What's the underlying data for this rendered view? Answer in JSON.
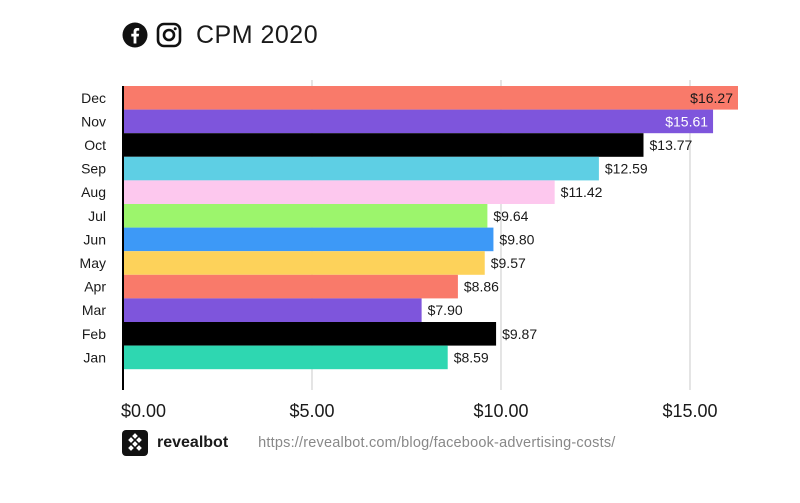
{
  "header": {
    "title": "CPM 2020",
    "icons": [
      "facebook-icon",
      "instagram-icon"
    ]
  },
  "footer": {
    "brand": "revealbot",
    "brand_icon": "revealbot-logo-icon",
    "url": "https://revealbot.com/blog/facebook-advertising-costs/"
  },
  "chart_data": {
    "type": "bar",
    "orientation": "horizontal",
    "title": "CPM 2020",
    "categories": [
      "Dec",
      "Nov",
      "Oct",
      "Sep",
      "Aug",
      "Jul",
      "Jun",
      "May",
      "Apr",
      "Mar",
      "Feb",
      "Jan"
    ],
    "values": [
      16.27,
      15.61,
      13.77,
      12.59,
      11.42,
      9.64,
      9.8,
      9.57,
      8.86,
      7.9,
      9.87,
      8.59
    ],
    "value_labels": [
      "$16.27",
      "$15.61",
      "$13.77",
      "$12.59",
      "$11.42",
      "$9.64",
      "$9.80",
      "$9.57",
      "$8.86",
      "$7.90",
      "$9.87",
      "$8.59"
    ],
    "colors": [
      "#f97a6a",
      "#7e55dc",
      "#000000",
      "#5ecfe4",
      "#fdc8ee",
      "#9cf56c",
      "#3d99f7",
      "#fdd25a",
      "#f97a6a",
      "#7e55dc",
      "#000000",
      "#2ed7b1"
    ],
    "label_colors": [
      "#1a1a1a",
      "#ffffff",
      "#1a1a1a",
      "#1a1a1a",
      "#1a1a1a",
      "#1a1a1a",
      "#1a1a1a",
      "#1a1a1a",
      "#1a1a1a",
      "#1a1a1a",
      "#1a1a1a",
      "#1a1a1a"
    ],
    "label_inside": [
      true,
      true,
      false,
      false,
      false,
      false,
      false,
      false,
      false,
      false,
      false,
      false
    ],
    "xticks": [
      0,
      5,
      10,
      15
    ],
    "xtick_labels": [
      "$0.00",
      "$5.00",
      "$10.00",
      "$15.00"
    ],
    "xlim": [
      0,
      16.27
    ],
    "xlabel": "",
    "ylabel": "",
    "grid": "vertical",
    "legend": "none"
  }
}
